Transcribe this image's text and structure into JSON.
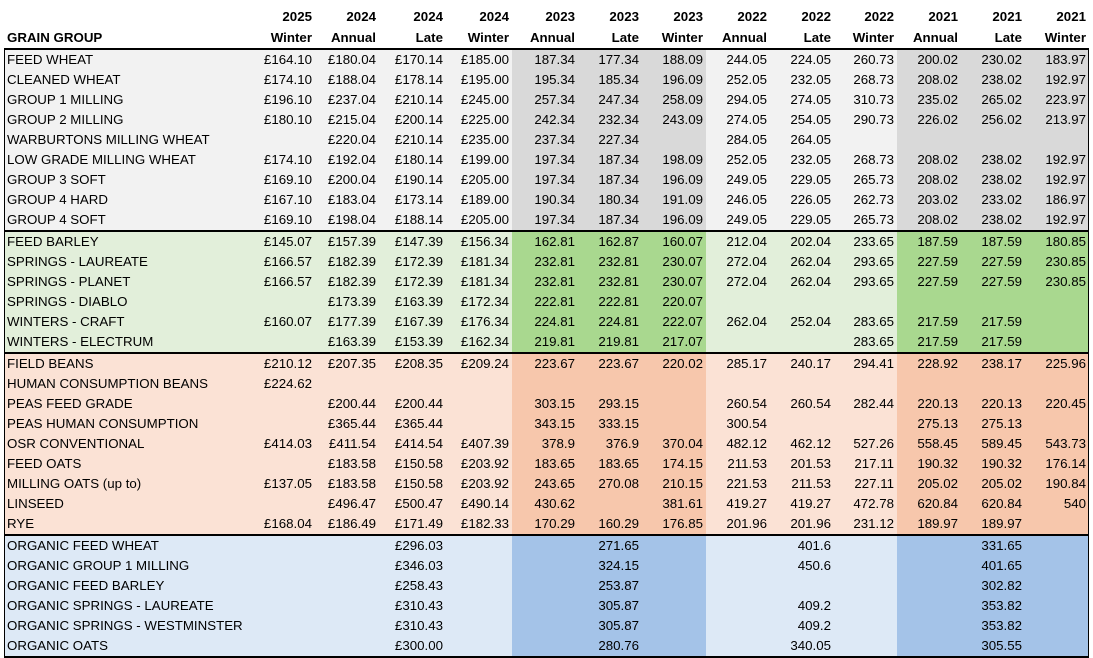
{
  "columns": [
    {
      "year": "2025",
      "period": "Winter"
    },
    {
      "year": "2024",
      "period": "Annual"
    },
    {
      "year": "2024",
      "period": "Late"
    },
    {
      "year": "2024",
      "period": "Winter"
    },
    {
      "year": "2023",
      "period": "Annual"
    },
    {
      "year": "2023",
      "period": "Late"
    },
    {
      "year": "2023",
      "period": "Winter"
    },
    {
      "year": "2022",
      "period": "Annual"
    },
    {
      "year": "2022",
      "period": "Late"
    },
    {
      "year": "2022",
      "period": "Winter"
    },
    {
      "year": "2021",
      "period": "Annual"
    },
    {
      "year": "2021",
      "period": "Late"
    },
    {
      "year": "2021",
      "period": "Winter"
    }
  ],
  "header_label": "GRAIN GROUP",
  "groups": [
    {
      "id": "wheat",
      "colors": {
        "light": "#f2f2f2",
        "dark": "#d9d9d9"
      },
      "rows": [
        {
          "name": "FEED WHEAT",
          "values": [
            "£164.10",
            "£180.04",
            "£170.14",
            "£185.00",
            "187.34",
            "177.34",
            "188.09",
            "244.05",
            "224.05",
            "260.73",
            "200.02",
            "230.02",
            "183.97"
          ]
        },
        {
          "name": "CLEANED WHEAT",
          "values": [
            "£174.10",
            "£188.04",
            "£178.14",
            "£195.00",
            "195.34",
            "185.34",
            "196.09",
            "252.05",
            "232.05",
            "268.73",
            "208.02",
            "238.02",
            "192.97"
          ]
        },
        {
          "name": "GROUP 1 MILLING",
          "values": [
            "£196.10",
            "£237.04",
            "£210.14",
            "£245.00",
            "257.34",
            "247.34",
            "258.09",
            "294.05",
            "274.05",
            "310.73",
            "235.02",
            "265.02",
            "223.97"
          ]
        },
        {
          "name": "GROUP 2 MILLING",
          "values": [
            "£180.10",
            "£215.04",
            "£200.14",
            "£225.00",
            "242.34",
            "232.34",
            "243.09",
            "274.05",
            "254.05",
            "290.73",
            "226.02",
            "256.02",
            "213.97"
          ]
        },
        {
          "name": "WARBURTONS MILLING WHEAT",
          "values": [
            "",
            "£220.04",
            "£210.14",
            "£235.00",
            "237.34",
            "227.34",
            "",
            "284.05",
            "264.05",
            "",
            "",
            "",
            ""
          ]
        },
        {
          "name": "LOW GRADE MILLING WHEAT",
          "values": [
            "£174.10",
            "£192.04",
            "£180.14",
            "£199.00",
            "197.34",
            "187.34",
            "198.09",
            "252.05",
            "232.05",
            "268.73",
            "208.02",
            "238.02",
            "192.97"
          ]
        },
        {
          "name": "GROUP 3 SOFT",
          "values": [
            "£169.10",
            "£200.04",
            "£190.14",
            "£205.00",
            "197.34",
            "187.34",
            "196.09",
            "249.05",
            "229.05",
            "265.73",
            "208.02",
            "238.02",
            "192.97"
          ]
        },
        {
          "name": "GROUP 4 HARD",
          "values": [
            "£167.10",
            "£183.04",
            "£173.14",
            "£189.00",
            "190.34",
            "180.34",
            "191.09",
            "246.05",
            "226.05",
            "262.73",
            "203.02",
            "233.02",
            "186.97"
          ]
        },
        {
          "name": "GROUP 4 SOFT",
          "values": [
            "£169.10",
            "£198.04",
            "£188.14",
            "£205.00",
            "197.34",
            "187.34",
            "196.09",
            "249.05",
            "229.05",
            "265.73",
            "208.02",
            "238.02",
            "192.97"
          ]
        }
      ]
    },
    {
      "id": "barley",
      "colors": {
        "light": "#e2efda",
        "dark": "#a9d88f"
      },
      "rows": [
        {
          "name": "FEED BARLEY",
          "values": [
            "£145.07",
            "£157.39",
            "£147.39",
            "£156.34",
            "162.81",
            "162.87",
            "160.07",
            "212.04",
            "202.04",
            "233.65",
            "187.59",
            "187.59",
            "180.85"
          ]
        },
        {
          "name": "SPRINGS - LAUREATE",
          "values": [
            "£166.57",
            "£182.39",
            "£172.39",
            "£181.34",
            "232.81",
            "232.81",
            "230.07",
            "272.04",
            "262.04",
            "293.65",
            "227.59",
            "227.59",
            "230.85"
          ]
        },
        {
          "name": "SPRINGS - PLANET",
          "values": [
            "£166.57",
            "£182.39",
            "£172.39",
            "£181.34",
            "232.81",
            "232.81",
            "230.07",
            "272.04",
            "262.04",
            "293.65",
            "227.59",
            "227.59",
            "230.85"
          ]
        },
        {
          "name": "SPRINGS - DIABLO",
          "values": [
            "",
            "£173.39",
            "£163.39",
            "£172.34",
            "222.81",
            "222.81",
            "220.07",
            "",
            "",
            "",
            "",
            "",
            ""
          ]
        },
        {
          "name": "WINTERS - CRAFT",
          "values": [
            "£160.07",
            "£177.39",
            "£167.39",
            "£176.34",
            "224.81",
            "224.81",
            "222.07",
            "262.04",
            "252.04",
            "283.65",
            "217.59",
            "217.59",
            ""
          ]
        },
        {
          "name": "WINTERS - ELECTRUM",
          "values": [
            "",
            "£163.39",
            "£153.39",
            "£162.34",
            "219.81",
            "219.81",
            "217.07",
            "",
            "",
            "283.65",
            "217.59",
            "217.59",
            ""
          ]
        }
      ]
    },
    {
      "id": "pulses-oilseeds",
      "colors": {
        "light": "#fbe2d5",
        "dark": "#f7c7ac"
      },
      "rows": [
        {
          "name": "FIELD BEANS",
          "values": [
            "£210.12",
            "£207.35",
            "£208.35",
            "£209.24",
            "223.67",
            "223.67",
            "220.02",
            "285.17",
            "240.17",
            "294.41",
            "228.92",
            "238.17",
            "225.96"
          ]
        },
        {
          "name": "HUMAN CONSUMPTION BEANS",
          "values": [
            "£224.62",
            "",
            "",
            "",
            "",
            "",
            "",
            "",
            "",
            "",
            "",
            "",
            ""
          ]
        },
        {
          "name": "PEAS FEED GRADE",
          "values": [
            "",
            "£200.44",
            "£200.44",
            "",
            "303.15",
            "293.15",
            "",
            "260.54",
            "260.54",
            "282.44",
            "220.13",
            "220.13",
            "220.45"
          ]
        },
        {
          "name": "PEAS HUMAN CONSUMPTION",
          "values": [
            "",
            "£365.44",
            "£365.44",
            "",
            "343.15",
            "333.15",
            "",
            "300.54",
            "",
            "",
            "275.13",
            "275.13",
            ""
          ]
        },
        {
          "name": "OSR CONVENTIONAL",
          "values": [
            "£414.03",
            "£411.54",
            "£414.54",
            "£407.39",
            "378.9",
            "376.9",
            "370.04",
            "482.12",
            "462.12",
            "527.26",
            "558.45",
            "589.45",
            "543.73"
          ]
        },
        {
          "name": "FEED OATS",
          "values": [
            "",
            "£183.58",
            "£150.58",
            "£203.92",
            "183.65",
            "183.65",
            "174.15",
            "211.53",
            "201.53",
            "217.11",
            "190.32",
            "190.32",
            "176.14"
          ]
        },
        {
          "name": "MILLING OATS (up to)",
          "values": [
            "£137.05",
            "£183.58",
            "£150.58",
            "£203.92",
            "243.65",
            "270.08",
            "210.15",
            "221.53",
            "211.53",
            "227.11",
            "205.02",
            "205.02",
            "190.84"
          ]
        },
        {
          "name": "LINSEED",
          "values": [
            "",
            "£496.47",
            "£500.47",
            "£490.14",
            "430.62",
            "",
            "381.61",
            "419.27",
            "419.27",
            "472.78",
            "620.84",
            "620.84",
            "540"
          ]
        },
        {
          "name": "RYE",
          "values": [
            "£168.04",
            "£186.49",
            "£171.49",
            "£182.33",
            "170.29",
            "160.29",
            "176.85",
            "201.96",
            "201.96",
            "231.12",
            "189.97",
            "189.97",
            ""
          ]
        }
      ]
    },
    {
      "id": "organic",
      "colors": {
        "light": "#dde9f6",
        "dark": "#a4c3e8"
      },
      "rows": [
        {
          "name": "ORGANIC FEED WHEAT",
          "values": [
            "",
            "",
            "£296.03",
            "",
            "",
            "271.65",
            "",
            "",
            "401.6",
            "",
            "",
            "331.65",
            ""
          ]
        },
        {
          "name": "ORGANIC GROUP 1 MILLING",
          "values": [
            "",
            "",
            "£346.03",
            "",
            "",
            "324.15",
            "",
            "",
            "450.6",
            "",
            "",
            "401.65",
            ""
          ]
        },
        {
          "name": "ORGANIC FEED BARLEY",
          "values": [
            "",
            "",
            "£258.43",
            "",
            "",
            "253.87",
            "",
            "",
            "",
            "",
            "",
            "302.82",
            ""
          ]
        },
        {
          "name": "ORGANIC SPRINGS - LAUREATE",
          "values": [
            "",
            "",
            "£310.43",
            "",
            "",
            "305.87",
            "",
            "",
            "409.2",
            "",
            "",
            "353.82",
            ""
          ]
        },
        {
          "name": "ORGANIC SPRINGS - WESTMINSTER",
          "values": [
            "",
            "",
            "£310.43",
            "",
            "",
            "305.87",
            "",
            "",
            "409.2",
            "",
            "",
            "353.82",
            ""
          ]
        },
        {
          "name": "ORGANIC OATS",
          "values": [
            "",
            "",
            "£300.00",
            "",
            "",
            "280.76",
            "",
            "",
            "340.05",
            "",
            "",
            "305.55",
            ""
          ]
        }
      ]
    }
  ]
}
